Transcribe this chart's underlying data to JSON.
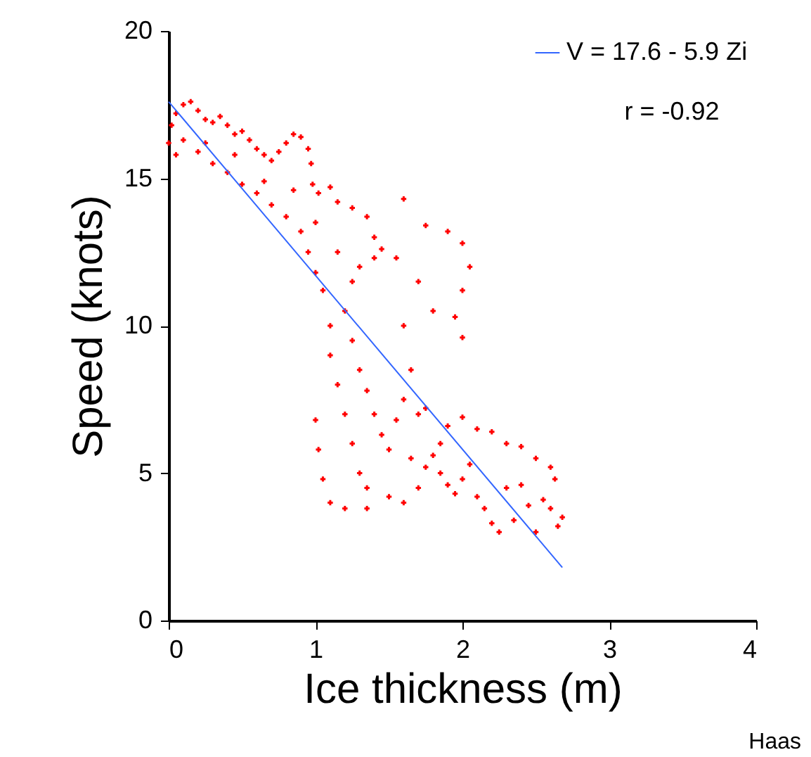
{
  "chart_data": {
    "type": "scatter",
    "xlabel": "Ice thickness (m)",
    "ylabel": "Speed (knots)",
    "xlim": [
      0,
      4
    ],
    "xticks": [
      0,
      1,
      2,
      3,
      4
    ],
    "ylim": [
      0,
      20
    ],
    "yticks": [
      0,
      5,
      10,
      15,
      20
    ],
    "grid": false,
    "legend": "top right",
    "annotations": [
      "r = -0.92",
      "Haas"
    ],
    "series": [
      {
        "marker": "cross",
        "color": "#ff0000",
        "x": [
          0.0,
          0.02,
          0.05,
          0.1,
          0.15,
          0.2,
          0.25,
          0.3,
          0.35,
          0.4,
          0.45,
          0.5,
          0.55,
          0.6,
          0.65,
          0.7,
          0.75,
          0.8,
          0.85,
          0.9,
          0.95,
          0.97,
          0.98,
          1.02,
          1.1,
          1.15,
          1.25,
          1.35,
          1.4,
          1.45,
          0.05,
          0.1,
          0.2,
          0.3,
          0.4,
          0.5,
          0.6,
          0.7,
          0.8,
          0.9,
          0.95,
          1.0,
          1.05,
          0.25,
          0.45,
          0.65,
          0.85,
          1.0,
          1.15,
          1.3,
          1.4,
          1.25,
          1.6,
          1.75,
          1.9,
          2.0,
          2.05,
          2.0,
          1.95,
          2.0,
          1.8,
          1.7,
          1.55,
          1.6,
          1.65,
          1.7,
          1.2,
          1.25,
          1.3,
          1.35,
          1.4,
          1.45,
          1.5,
          1.1,
          1.1,
          1.15,
          1.2,
          1.25,
          1.3,
          1.35,
          1.0,
          1.02,
          1.05,
          1.1,
          1.2,
          1.35,
          1.5,
          1.6,
          1.7,
          1.75,
          1.8,
          1.85,
          1.9,
          1.95,
          2.0,
          2.05,
          2.1,
          2.15,
          2.2,
          2.25,
          1.85,
          1.9,
          2.0,
          2.1,
          2.2,
          2.3,
          2.4,
          2.5,
          2.6,
          2.63,
          2.55,
          2.45,
          2.6,
          2.68,
          2.65,
          2.5,
          2.35,
          2.3,
          2.4,
          1.6,
          1.75,
          1.55,
          1.65
        ],
        "values": [
          16.2,
          16.8,
          17.2,
          17.5,
          17.6,
          17.3,
          17.0,
          16.9,
          17.1,
          16.8,
          16.5,
          16.6,
          16.3,
          16.0,
          15.8,
          15.6,
          15.9,
          16.2,
          16.5,
          16.4,
          16.0,
          15.5,
          14.8,
          14.5,
          14.7,
          14.2,
          14.0,
          13.7,
          13.0,
          12.6,
          15.8,
          16.3,
          15.9,
          15.5,
          15.2,
          14.8,
          14.5,
          14.1,
          13.7,
          13.2,
          12.5,
          11.8,
          11.2,
          16.2,
          15.8,
          14.9,
          14.6,
          13.5,
          12.5,
          12.0,
          12.3,
          11.5,
          14.3,
          13.4,
          13.2,
          12.8,
          12.0,
          11.2,
          10.3,
          9.6,
          10.5,
          11.5,
          12.3,
          10.0,
          8.5,
          7.0,
          10.5,
          9.5,
          8.5,
          7.8,
          7.0,
          6.3,
          5.8,
          10.0,
          9.0,
          8.0,
          7.0,
          6.0,
          5.0,
          4.5,
          6.8,
          5.8,
          4.8,
          4.0,
          3.8,
          3.8,
          4.2,
          4.0,
          4.5,
          5.2,
          5.6,
          5.0,
          4.6,
          4.3,
          4.8,
          5.3,
          4.2,
          3.8,
          3.3,
          3.0,
          6.0,
          6.6,
          6.9,
          6.5,
          6.4,
          6.0,
          5.9,
          5.5,
          5.2,
          4.8,
          4.1,
          3.9,
          3.8,
          3.5,
          3.2,
          3.0,
          3.4,
          4.5,
          4.6,
          7.5,
          7.2,
          6.8,
          5.5
        ]
      },
      {
        "type": "line",
        "marker": "none",
        "line_style": "solid",
        "name": "V = 17.6 - 5.9 Zi",
        "color": "#3366ff",
        "x": [
          0,
          2.68
        ],
        "values": [
          17.6,
          1.8
        ]
      }
    ]
  }
}
